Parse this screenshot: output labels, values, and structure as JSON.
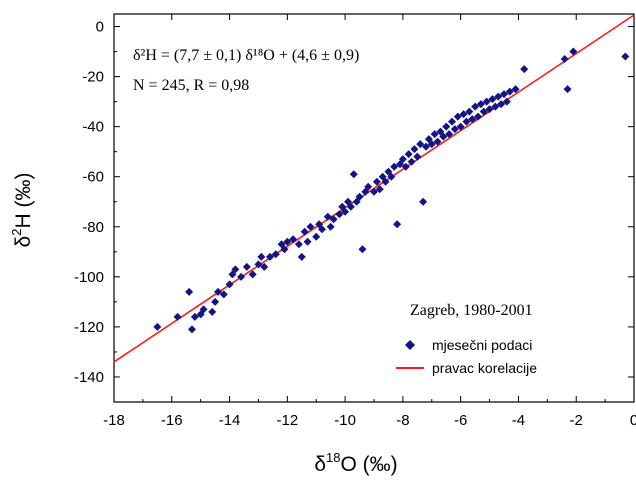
{
  "chart_data": {
    "type": "scatter",
    "title": "",
    "xlabel": {
      "base": "δ",
      "sup": "18",
      "rest": "O (‰)"
    },
    "ylabel": {
      "base": "δ",
      "sup": "2",
      "rest": "H (‰)"
    },
    "xlim": [
      -18,
      0
    ],
    "ylim": [
      -150,
      5
    ],
    "xticks": [
      -18,
      -16,
      -14,
      -12,
      -10,
      -8,
      -6,
      -4,
      -2,
      0
    ],
    "yticks": [
      0,
      -20,
      -40,
      -60,
      -80,
      -100,
      -120,
      -140
    ],
    "grid": false,
    "annotation_equation": "δ²H = (7,7 ± 0,1) δ¹⁸O + (4,6 ± 0,9)",
    "annotation_stats": "N = 245, R = 0,98",
    "location_label": "Zagreb, 1980-2001",
    "legend_position": "bottom-right",
    "colors": {
      "points": "#141483",
      "line": "#ff1a1a"
    },
    "series": [
      {
        "name": "mjesečni podaci",
        "kind": "scatter",
        "points": [
          [
            -16.5,
            -120
          ],
          [
            -15.8,
            -116
          ],
          [
            -15.4,
            -106
          ],
          [
            -15.3,
            -121
          ],
          [
            -15.2,
            -116
          ],
          [
            -15.0,
            -115
          ],
          [
            -14.9,
            -113
          ],
          [
            -14.6,
            -114
          ],
          [
            -14.5,
            -110
          ],
          [
            -14.4,
            -106
          ],
          [
            -14.2,
            -107
          ],
          [
            -14.0,
            -103
          ],
          [
            -13.9,
            -99
          ],
          [
            -13.8,
            -97
          ],
          [
            -13.6,
            -100
          ],
          [
            -13.4,
            -96
          ],
          [
            -13.2,
            -99
          ],
          [
            -13.0,
            -95
          ],
          [
            -12.9,
            -92
          ],
          [
            -12.8,
            -96
          ],
          [
            -12.6,
            -92
          ],
          [
            -12.4,
            -91
          ],
          [
            -12.2,
            -87
          ],
          [
            -12.1,
            -89
          ],
          [
            -12.0,
            -86
          ],
          [
            -11.8,
            -85
          ],
          [
            -11.6,
            -87
          ],
          [
            -11.5,
            -92
          ],
          [
            -11.4,
            -82
          ],
          [
            -11.3,
            -86
          ],
          [
            -11.2,
            -80
          ],
          [
            -11.0,
            -84
          ],
          [
            -10.9,
            -79
          ],
          [
            -10.8,
            -81
          ],
          [
            -10.6,
            -76
          ],
          [
            -10.5,
            -80
          ],
          [
            -10.4,
            -77
          ],
          [
            -10.2,
            -75
          ],
          [
            -10.1,
            -72
          ],
          [
            -10.0,
            -74
          ],
          [
            -9.9,
            -70
          ],
          [
            -9.8,
            -72
          ],
          [
            -9.7,
            -59
          ],
          [
            -9.6,
            -70
          ],
          [
            -9.5,
            -68
          ],
          [
            -9.4,
            -89
          ],
          [
            -9.3,
            -66
          ],
          [
            -9.2,
            -64
          ],
          [
            -9.0,
            -66
          ],
          [
            -8.9,
            -62
          ],
          [
            -8.8,
            -65
          ],
          [
            -8.7,
            -60
          ],
          [
            -8.6,
            -62
          ],
          [
            -8.5,
            -58
          ],
          [
            -8.4,
            -60
          ],
          [
            -8.3,
            -56
          ],
          [
            -8.2,
            -79
          ],
          [
            -8.1,
            -55
          ],
          [
            -8.0,
            -53
          ],
          [
            -7.9,
            -56
          ],
          [
            -7.8,
            -51
          ],
          [
            -7.7,
            -54
          ],
          [
            -7.6,
            -49
          ],
          [
            -7.5,
            -52
          ],
          [
            -7.4,
            -47
          ],
          [
            -7.3,
            -70
          ],
          [
            -7.2,
            -48
          ],
          [
            -7.1,
            -45
          ],
          [
            -7.0,
            -47
          ],
          [
            -6.9,
            -43
          ],
          [
            -6.8,
            -46
          ],
          [
            -6.7,
            -42
          ],
          [
            -6.6,
            -44
          ],
          [
            -6.5,
            -40
          ],
          [
            -6.4,
            -43
          ],
          [
            -6.3,
            -38
          ],
          [
            -6.2,
            -41
          ],
          [
            -6.1,
            -36
          ],
          [
            -6.0,
            -40
          ],
          [
            -5.9,
            -35
          ],
          [
            -5.8,
            -38
          ],
          [
            -5.7,
            -34
          ],
          [
            -5.6,
            -37
          ],
          [
            -5.5,
            -32
          ],
          [
            -5.4,
            -36
          ],
          [
            -5.3,
            -31
          ],
          [
            -5.2,
            -34
          ],
          [
            -5.1,
            -30
          ],
          [
            -5.0,
            -33
          ],
          [
            -4.9,
            -29
          ],
          [
            -4.8,
            -32
          ],
          [
            -4.7,
            -28
          ],
          [
            -4.6,
            -31
          ],
          [
            -4.5,
            -27
          ],
          [
            -4.4,
            -30
          ],
          [
            -4.3,
            -26
          ],
          [
            -4.1,
            -25
          ],
          [
            -3.8,
            -17
          ],
          [
            -2.4,
            -13
          ],
          [
            -2.3,
            -25
          ],
          [
            -2.1,
            -10
          ],
          [
            -0.3,
            -12
          ]
        ]
      },
      {
        "name": "pravac korelacije",
        "kind": "line",
        "slope": 7.7,
        "intercept": 4.6
      }
    ]
  }
}
